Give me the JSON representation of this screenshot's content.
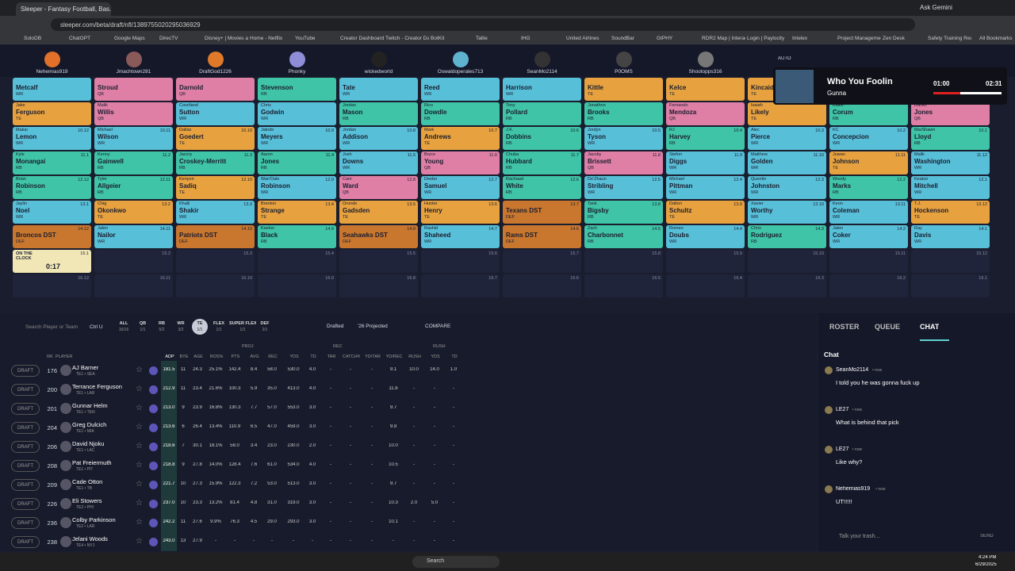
{
  "browser": {
    "tab_title": "Sleeper - Fantasy Football, Bas...",
    "url": "sleeper.com/beta/draft/nfl/1389755020295036929",
    "ask": "Ask Gemini",
    "all_bookmarks": "All Bookmarks",
    "bookmarks": [
      "SoloDB",
      "ChatGPT",
      "Google Maps",
      "DirecTV",
      "Disney+ | Movies an...",
      "Home - Netflix",
      "YouTube",
      "Creator Dashboard |...",
      "Twitch - Creator Da...",
      "BotKit",
      "Tallie",
      "IHG",
      "United Airlines",
      "SoundBar",
      "GIPHY",
      "RDR2 Map | Interact...",
      "Login | Paylocity",
      "Intelex",
      "Project Managemen...",
      "Zen Desk",
      "Safety Training Req..."
    ]
  },
  "teams": {
    "names": [
      "Nehemias919",
      "Jmachtown281",
      "DraftGod1226",
      "Phonky",
      "wickedworld",
      "Oswaldoperales713",
      "SeanMo2114",
      "P0OMS",
      "Shootopps316"
    ],
    "auto": "AUTO"
  },
  "media": {
    "song": "Who You Foolin",
    "artist": "Gunna",
    "elapsed": "01:00",
    "duration": "02:31"
  },
  "position_colors": {
    "QB": "#df7fa6",
    "RB": "#3fc4a7",
    "WR": "#58bfd8",
    "TE": "#e7a23f",
    "DEF": "#c9772f"
  },
  "board": [
    [
      {
        "last": "Metcalf",
        "pos": "WR"
      },
      {
        "last": "Stroud",
        "pos": "QB"
      },
      {
        "last": "Darnold",
        "pos": "QB"
      },
      {
        "last": "Stevenson",
        "pos": "RB"
      },
      {
        "last": "Tate",
        "pos": "WR"
      },
      {
        "last": "Reed",
        "pos": "WR"
      },
      {
        "last": "Harrison",
        "pos": "WR"
      },
      {
        "last": "Kittle",
        "pos": "TE"
      },
      {
        "last": "Kelce",
        "pos": "TE"
      },
      {
        "last": "Kincaid",
        "pos": "TE"
      }
    ],
    [
      {
        "first": "Jake",
        "last": "Ferguson",
        "pos": "TE"
      },
      {
        "first": "Malik",
        "last": "Willis",
        "pos": "QB"
      },
      {
        "first": "Courtland",
        "last": "Sutton",
        "pos": "WR"
      },
      {
        "first": "Chris",
        "last": "Godwin",
        "pos": "WR"
      },
      {
        "first": "Jordan",
        "last": "Mason",
        "pos": "RB"
      },
      {
        "first": "Rico",
        "last": "Dowdle",
        "pos": "RB"
      },
      {
        "first": "Tony",
        "last": "Pollard",
        "pos": "RB"
      },
      {
        "first": "Jonathon",
        "last": "Brooks",
        "pos": "RB"
      },
      {
        "first": "Fernando",
        "last": "Mendoza",
        "pos": "QB"
      },
      {
        "first": "Isaiah",
        "last": "Likely",
        "pos": "TE"
      },
      {
        "first": "Blake",
        "last": "Corum",
        "pos": "RB"
      },
      {
        "first": "Daniel",
        "last": "Jones",
        "pos": "QB"
      }
    ],
    [
      {
        "first": "Makai",
        "last": "Lemon",
        "pos": "WR",
        "pick": "10.12"
      },
      {
        "first": "Michael",
        "last": "Wilson",
        "pos": "WR",
        "pick": "10.11"
      },
      {
        "first": "Dallas",
        "last": "Goedert",
        "pos": "TE",
        "pick": "10.10"
      },
      {
        "first": "Jakobi",
        "last": "Meyers",
        "pos": "WR",
        "pick": "10.9"
      },
      {
        "first": "Jordan",
        "last": "Addison",
        "pos": "WR",
        "pick": "10.8"
      },
      {
        "first": "Mark",
        "last": "Andrews",
        "pos": "TE",
        "pick": "10.7"
      },
      {
        "first": "J.K.",
        "last": "Dobbins",
        "pos": "RB",
        "pick": "10.6"
      },
      {
        "first": "Jordyn",
        "last": "Tyson",
        "pos": "WR",
        "pick": "10.5"
      },
      {
        "first": "RJ",
        "last": "Harvey",
        "pos": "RB",
        "pick": "10.4"
      },
      {
        "first": "Alec",
        "last": "Pierce",
        "pos": "WR",
        "pick": "10.3"
      },
      {
        "first": "KC",
        "last": "Concepcion",
        "pos": "WR",
        "pick": "10.2"
      },
      {
        "first": "MarShawn",
        "last": "Lloyd",
        "pos": "RB",
        "pick": "10.1"
      }
    ],
    [
      {
        "first": "Kyle",
        "last": "Monangai",
        "pos": "RB",
        "pick": "11.1"
      },
      {
        "first": "Kenny",
        "last": "Gainwell",
        "pos": "RB",
        "pick": "11.2"
      },
      {
        "first": "Jacory",
        "last": "Croskey-Merritt",
        "pos": "RB",
        "pick": "11.3"
      },
      {
        "first": "Aaron",
        "last": "Jones",
        "pos": "RB",
        "pick": "11.4"
      },
      {
        "first": "Josh",
        "last": "Downs",
        "pos": "WR",
        "pick": "11.5"
      },
      {
        "first": "Bryce",
        "last": "Young",
        "pos": "QB",
        "pick": "11.6"
      },
      {
        "first": "Chuba",
        "last": "Hubbard",
        "pos": "RB",
        "pick": "11.7"
      },
      {
        "first": "Jacoby",
        "last": "Brissett",
        "pos": "QB",
        "pick": "11.8"
      },
      {
        "first": "Stefon",
        "last": "Diggs",
        "pos": "WR",
        "pick": "11.9"
      },
      {
        "first": "Matthew",
        "last": "Golden",
        "pos": "WR",
        "pick": "11.10"
      },
      {
        "first": "Juwan",
        "last": "Johnson",
        "pos": "TE",
        "pick": "11.11"
      },
      {
        "first": "Malik",
        "last": "Washington",
        "pos": "WR",
        "pick": "11.12"
      }
    ],
    [
      {
        "first": "Brian",
        "last": "Robinson",
        "pos": "RB",
        "pick": "12.12"
      },
      {
        "first": "Tyler",
        "last": "Allgeier",
        "pos": "RB",
        "pick": "12.11"
      },
      {
        "first": "Kenyon",
        "last": "Sadiq",
        "pos": "TE",
        "pick": "12.10"
      },
      {
        "first": "Wan'Dale",
        "last": "Robinson",
        "pos": "WR",
        "pick": "12.9"
      },
      {
        "first": "Cam",
        "last": "Ward",
        "pos": "QB",
        "pick": "12.8"
      },
      {
        "first": "Deebo",
        "last": "Samuel",
        "pos": "WR",
        "pick": "12.7"
      },
      {
        "first": "Rachaad",
        "last": "White",
        "pos": "RB",
        "pick": "12.6"
      },
      {
        "first": "De'Zhaun",
        "last": "Stribling",
        "pos": "WR",
        "pick": "12.5"
      },
      {
        "first": "Michael",
        "last": "Pittman",
        "pos": "WR",
        "pick": "12.4"
      },
      {
        "first": "Quentin",
        "last": "Johnston",
        "pos": "WR",
        "pick": "12.3"
      },
      {
        "first": "Woody",
        "last": "Marks",
        "pos": "RB",
        "pick": "12.2"
      },
      {
        "first": "Keaton",
        "last": "Mitchell",
        "pos": "WR",
        "pick": "12.1"
      }
    ],
    [
      {
        "first": "Jaylin",
        "last": "Noel",
        "pos": "WR",
        "pick": "13.1"
      },
      {
        "first": "Chig",
        "last": "Okonkwo",
        "pos": "TE",
        "pick": "13.2"
      },
      {
        "first": "Khalil",
        "last": "Shakir",
        "pos": "WR",
        "pick": "13.3"
      },
      {
        "first": "Brenton",
        "last": "Strange",
        "pos": "TE",
        "pick": "13.4"
      },
      {
        "first": "Oronde",
        "last": "Gadsden",
        "pos": "TE",
        "pick": "13.5"
      },
      {
        "first": "Hunter",
        "last": "Henry",
        "pos": "TE",
        "pick": "13.6"
      },
      {
        "last": "Texans DST",
        "pos": "DEF",
        "pick": "13.7"
      },
      {
        "first": "Tank",
        "last": "Bigsby",
        "pos": "RB",
        "pick": "13.8"
      },
      {
        "first": "Dalton",
        "last": "Schultz",
        "pos": "TE",
        "pick": "13.9"
      },
      {
        "first": "Xavier",
        "last": "Worthy",
        "pos": "WR",
        "pick": "13.10"
      },
      {
        "first": "Keon",
        "last": "Coleman",
        "pos": "WR",
        "pick": "13.11"
      },
      {
        "first": "T.J.",
        "last": "Hockenson",
        "pos": "TE",
        "pick": "13.12"
      }
    ],
    [
      {
        "last": "Broncos DST",
        "pos": "DEF",
        "pick": "14.12"
      },
      {
        "first": "Jalen",
        "last": "Nailor",
        "pos": "WR",
        "pick": "14.11"
      },
      {
        "last": "Patriots DST",
        "pos": "DEF",
        "pick": "14.10"
      },
      {
        "first": "Kaelon",
        "last": "Black",
        "pos": "RB",
        "pick": "14.9"
      },
      {
        "last": "Seahawks DST",
        "pos": "DEF",
        "pick": "14.8"
      },
      {
        "first": "Rashid",
        "last": "Shaheed",
        "pos": "WR",
        "pick": "14.7"
      },
      {
        "last": "Rams DST",
        "pos": "DEF",
        "pick": "14.6"
      },
      {
        "first": "Zach",
        "last": "Charbonnet",
        "pos": "RB",
        "pick": "14.5"
      },
      {
        "first": "Romeo",
        "last": "Doubs",
        "pos": "WR",
        "pick": "14.4"
      },
      {
        "first": "Chris",
        "last": "Rodriguez",
        "pos": "RB",
        "pick": "14.3"
      },
      {
        "first": "Jalen",
        "last": "Coker",
        "pos": "WR",
        "pick": "14.2"
      },
      {
        "first": "Ray",
        "last": "Davis",
        "pos": "WR",
        "pick": "14.1"
      }
    ],
    [
      {
        "status": "ON THE CLOCK",
        "timer": "0:17",
        "pick": "15.1"
      },
      {
        "pick": "15.2"
      },
      {
        "pick": "15.3"
      },
      {
        "pick": "15.4"
      },
      {
        "pick": "15.5"
      },
      {
        "pick": "15.6"
      },
      {
        "pick": "15.7"
      },
      {
        "pick": "15.8"
      },
      {
        "pick": "15.9"
      },
      {
        "pick": "15.10"
      },
      {
        "pick": "15.11"
      },
      {
        "pick": "15.12"
      }
    ],
    [
      {
        "pick": "16.12"
      },
      {
        "pick": "16.11"
      },
      {
        "pick": "16.10"
      },
      {
        "pick": "16.9"
      },
      {
        "pick": "16.8"
      },
      {
        "pick": "16.7"
      },
      {
        "pick": "16.6"
      },
      {
        "pick": "16.5"
      },
      {
        "pick": "16.4"
      },
      {
        "pick": "16.3"
      },
      {
        "pick": "16.2"
      },
      {
        "pick": "16.1"
      }
    ]
  ],
  "filters": {
    "search": "Search Player or Team",
    "shortcut": "Ctrl U",
    "positions": [
      {
        "label": "ALL",
        "count": "16/16"
      },
      {
        "label": "QB",
        "count": "1/1"
      },
      {
        "label": "RB",
        "count": "5/2"
      },
      {
        "label": "WR",
        "count": "3/2"
      },
      {
        "label": "TE",
        "count": "1/1"
      },
      {
        "label": "FLEX",
        "count": "1/1"
      },
      {
        "label": "SUPER FLEX",
        "count": "1/1"
      },
      {
        "label": "DEF",
        "count": "2/1"
      }
    ],
    "drafted": "Drafted",
    "projection": "'26 Projected",
    "compare": "COMPARE"
  },
  "tabs": [
    "ROSTER",
    "QUEUE",
    "CHAT"
  ],
  "table": {
    "groups": [
      "PROJ",
      "REC",
      "RUSH"
    ],
    "headers": [
      "RK",
      "PLAYER",
      "ADP",
      "BYE",
      "AGE",
      "ROS%",
      "PTS",
      "AVG",
      "REC",
      "YDS",
      "TD",
      "TAR",
      "CATCH%",
      "YD/TAR",
      "YD/REC",
      "RUSH",
      "YDS",
      "TD"
    ],
    "button": "DRAFT",
    "rows": [
      {
        "rank": "176",
        "name": "AJ Barner",
        "info": "TE1 • SEA",
        "stats": [
          "181.5",
          "11",
          "24.3",
          "25.1%",
          "142.4",
          "8.4",
          "58.0",
          "530.0",
          "4.0",
          "-",
          "-",
          "-",
          "9.1",
          "10.0",
          "14.0",
          "1.0"
        ]
      },
      {
        "rank": "200",
        "name": "Terrance Ferguson",
        "info": "TE1 • LAR",
        "stats": [
          "212.9",
          "11",
          "23.4",
          "21.6%",
          "100.3",
          "5.9",
          "35.0",
          "413.0",
          "4.0",
          "-",
          "-",
          "-",
          "11.8",
          "-",
          "-",
          "-"
        ]
      },
      {
        "rank": "201",
        "name": "Gunnar Helm",
        "info": "TE1 • TEN",
        "stats": [
          "213.0",
          "9",
          "23.9",
          "16.8%",
          "130.3",
          "7.7",
          "57.0",
          "553.0",
          "3.0",
          "-",
          "-",
          "-",
          "9.7",
          "-",
          "-",
          "-"
        ]
      },
      {
        "rank": "204",
        "name": "Greg Dulcich",
        "info": "TE1 • MIA",
        "stats": [
          "213.6",
          "6",
          "26.4",
          "13.4%",
          "110.9",
          "6.5",
          "47.0",
          "459.0",
          "3.0",
          "-",
          "-",
          "-",
          "9.8",
          "-",
          "-",
          "-"
        ]
      },
      {
        "rank": "206",
        "name": "David Njoku",
        "info": "TE1 • LAC",
        "stats": [
          "218.6",
          "7",
          "30.1",
          "18.1%",
          "58.0",
          "3.4",
          "23.0",
          "230.0",
          "2.0",
          "-",
          "-",
          "-",
          "10.0",
          "-",
          "-",
          "-"
        ]
      },
      {
        "rank": "208",
        "name": "Pat Freiermuth",
        "info": "TE1 • PIT",
        "stats": [
          "218.8",
          "9",
          "27.8",
          "14.0%",
          "128.4",
          "7.6",
          "61.0",
          "534.0",
          "4.0",
          "-",
          "-",
          "-",
          "10.5",
          "-",
          "-",
          "-"
        ]
      },
      {
        "rank": "209",
        "name": "Cade Otton",
        "info": "TE1 • TB",
        "stats": [
          "221.7",
          "10",
          "27.3",
          "15.9%",
          "122.3",
          "7.2",
          "53.0",
          "513.0",
          "3.0",
          "-",
          "-",
          "-",
          "9.7",
          "-",
          "-",
          "-"
        ]
      },
      {
        "rank": "226",
        "name": "Eli Stowers",
        "info": "TE2 • PHI",
        "stats": [
          "237.0",
          "10",
          "23.3",
          "13.2%",
          "81.4",
          "4.8",
          "31.0",
          "319.0",
          "3.0",
          "-",
          "-",
          "-",
          "10.3",
          "2.0",
          "5.0",
          "-"
        ]
      },
      {
        "rank": "236",
        "name": "Colby Parkinson",
        "info": "TE2 • LAR",
        "stats": [
          "242.2",
          "11",
          "27.6",
          "9.9%",
          "76.3",
          "4.5",
          "29.0",
          "293.0",
          "3.0",
          "-",
          "-",
          "-",
          "10.1",
          "-",
          "-",
          "-"
        ]
      },
      {
        "rank": "238",
        "name": "Jelani Woods",
        "info": "TE4 • NYJ",
        "stats": [
          "243.0",
          "13",
          "27.9",
          "-",
          "-",
          "-",
          "-",
          "-",
          "-",
          "-",
          "-",
          "-",
          "-",
          "-",
          "-",
          "-"
        ]
      }
    ]
  },
  "chat": {
    "title": "Chat",
    "messages": [
      {
        "user": "SeanMo2114",
        "time": "• now",
        "text": "I told you he was gonna fuck up"
      },
      {
        "user": "LE27",
        "time": "• now",
        "text": "What is behind that pick"
      },
      {
        "user": "LE27",
        "time": "• now",
        "text": "Like why?"
      },
      {
        "user": "Nehemias919",
        "time": "• now",
        "text": "UT!!!!!"
      }
    ],
    "placeholder": "Talk your trash...",
    "send": "SEND"
  },
  "taskbar": {
    "search": "Search",
    "time": "4:24 PM",
    "date": "6/29/2025"
  }
}
